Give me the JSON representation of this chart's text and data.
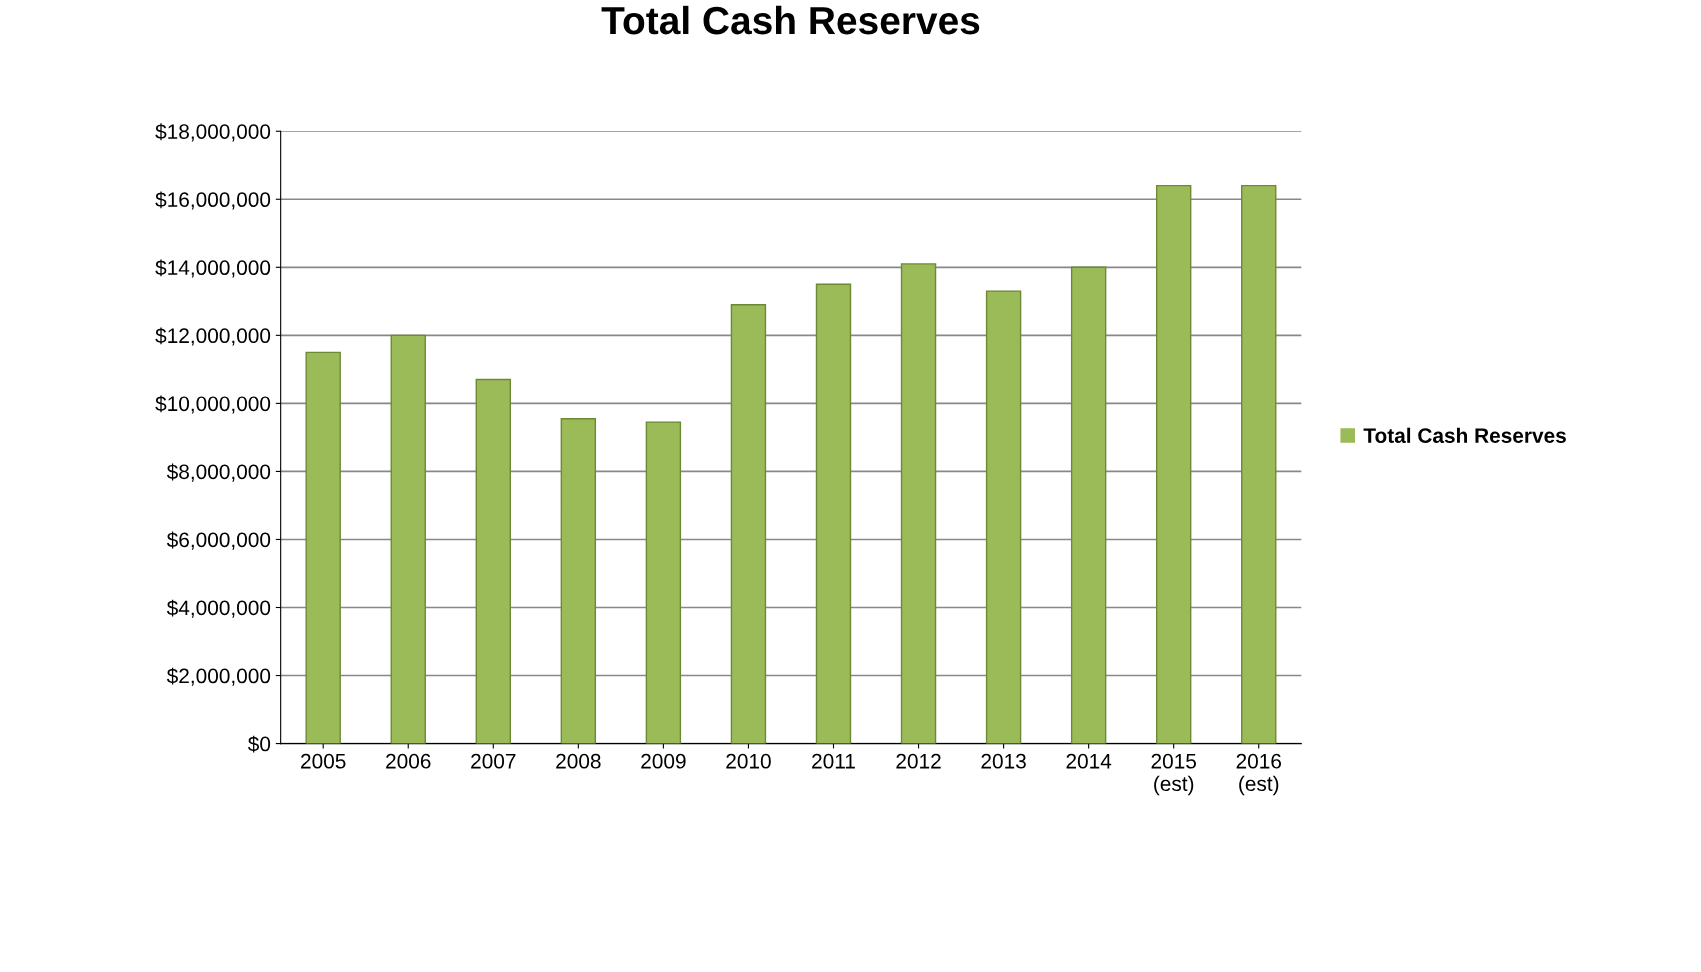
{
  "chart_data": {
    "type": "bar",
    "title": "Total Cash Reserves",
    "categories": [
      "2005",
      "2006",
      "2007",
      "2008",
      "2009",
      "2010",
      "2011",
      "2012",
      "2013",
      "2014",
      "2015\n(est)",
      "2016\n(est)"
    ],
    "series": [
      {
        "name": "Total Cash Reserves",
        "color": "#9bbb59",
        "values": [
          11500000,
          12000000,
          10700000,
          9550000,
          9450000,
          12900000,
          13500000,
          14100000,
          13300000,
          14000000,
          16400000,
          16400000
        ]
      }
    ],
    "ylim": [
      0,
      18000000
    ],
    "yticks": [
      {
        "value": 0,
        "label": "$0"
      },
      {
        "value": 2000000,
        "label": "$2,000,000"
      },
      {
        "value": 4000000,
        "label": "$4,000,000"
      },
      {
        "value": 6000000,
        "label": "$6,000,000"
      },
      {
        "value": 8000000,
        "label": "$8,000,000"
      },
      {
        "value": 10000000,
        "label": "$10,000,000"
      },
      {
        "value": 12000000,
        "label": "$12,000,000"
      },
      {
        "value": 14000000,
        "label": "$14,000,000"
      },
      {
        "value": 16000000,
        "label": "$16,000,000"
      },
      {
        "value": 18000000,
        "label": "$18,000,000"
      }
    ],
    "grid": "y",
    "legend": "right"
  }
}
